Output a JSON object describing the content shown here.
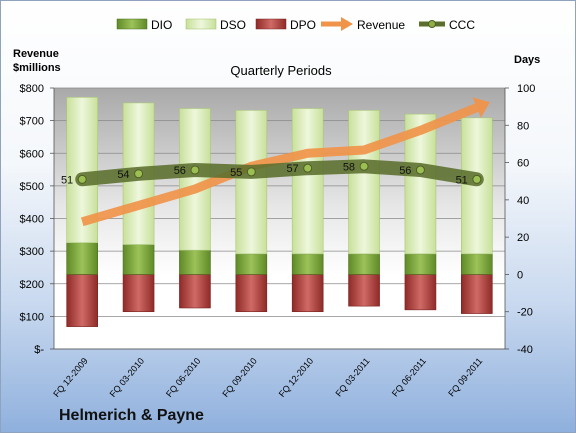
{
  "chart_data": {
    "type": "bar",
    "title": "Quarterly Periods",
    "company": "Helmerich & Payne",
    "left_axis_label": "Revenue\n$millions",
    "right_axis_label": "Days",
    "categories": [
      "FQ 12-2009",
      "FQ 03-2010",
      "FQ 06-2010",
      "FQ 09-2010",
      "FQ 12-2010",
      "FQ 03-2011",
      "FQ 06-2011",
      "FQ 09-2011"
    ],
    "left_axis": {
      "min": 0,
      "max": 800,
      "step": 100,
      "tick_labels": [
        "$-",
        "$100",
        "$200",
        "$300",
        "$400",
        "$500",
        "$600",
        "$700",
        "$800"
      ]
    },
    "right_axis": {
      "min": -40,
      "max": 100,
      "step": 20,
      "tick_labels": [
        "-40",
        "-20",
        "0",
        "20",
        "40",
        "60",
        "80",
        "100"
      ]
    },
    "legend": {
      "placement": "top",
      "labels": [
        "DIO",
        "DSO",
        "DPO",
        "Revenue",
        "CCC"
      ]
    },
    "series": [
      {
        "name": "DIO",
        "axis": "right",
        "kind": "stacked-bar",
        "color": "#7aa33a",
        "values": [
          17,
          16,
          13,
          11,
          11,
          11,
          11,
          11
        ]
      },
      {
        "name": "DSO",
        "axis": "right",
        "kind": "stacked-bar",
        "color": "#d9edb4",
        "values": [
          78,
          76,
          76,
          77,
          78,
          77,
          75,
          73
        ]
      },
      {
        "name": "DPO",
        "axis": "right",
        "kind": "negative-bar",
        "color": "#b3403c",
        "values": [
          -28,
          -20,
          -18,
          -20,
          -20,
          -17,
          -19,
          -21
        ]
      },
      {
        "name": "Revenue",
        "axis": "left",
        "kind": "arrow-line",
        "color": "#f0944a",
        "values": [
          390,
          440,
          490,
          560,
          600,
          610,
          670,
          740
        ]
      },
      {
        "name": "CCC",
        "axis": "right",
        "kind": "line",
        "color": "#5b6e2e",
        "values": [
          51,
          54,
          56,
          55,
          57,
          58,
          56,
          51
        ]
      }
    ],
    "ccc_labels": [
      "51",
      "54",
      "56",
      "55",
      "57",
      "58",
      "56",
      "51"
    ],
    "grid": true
  }
}
